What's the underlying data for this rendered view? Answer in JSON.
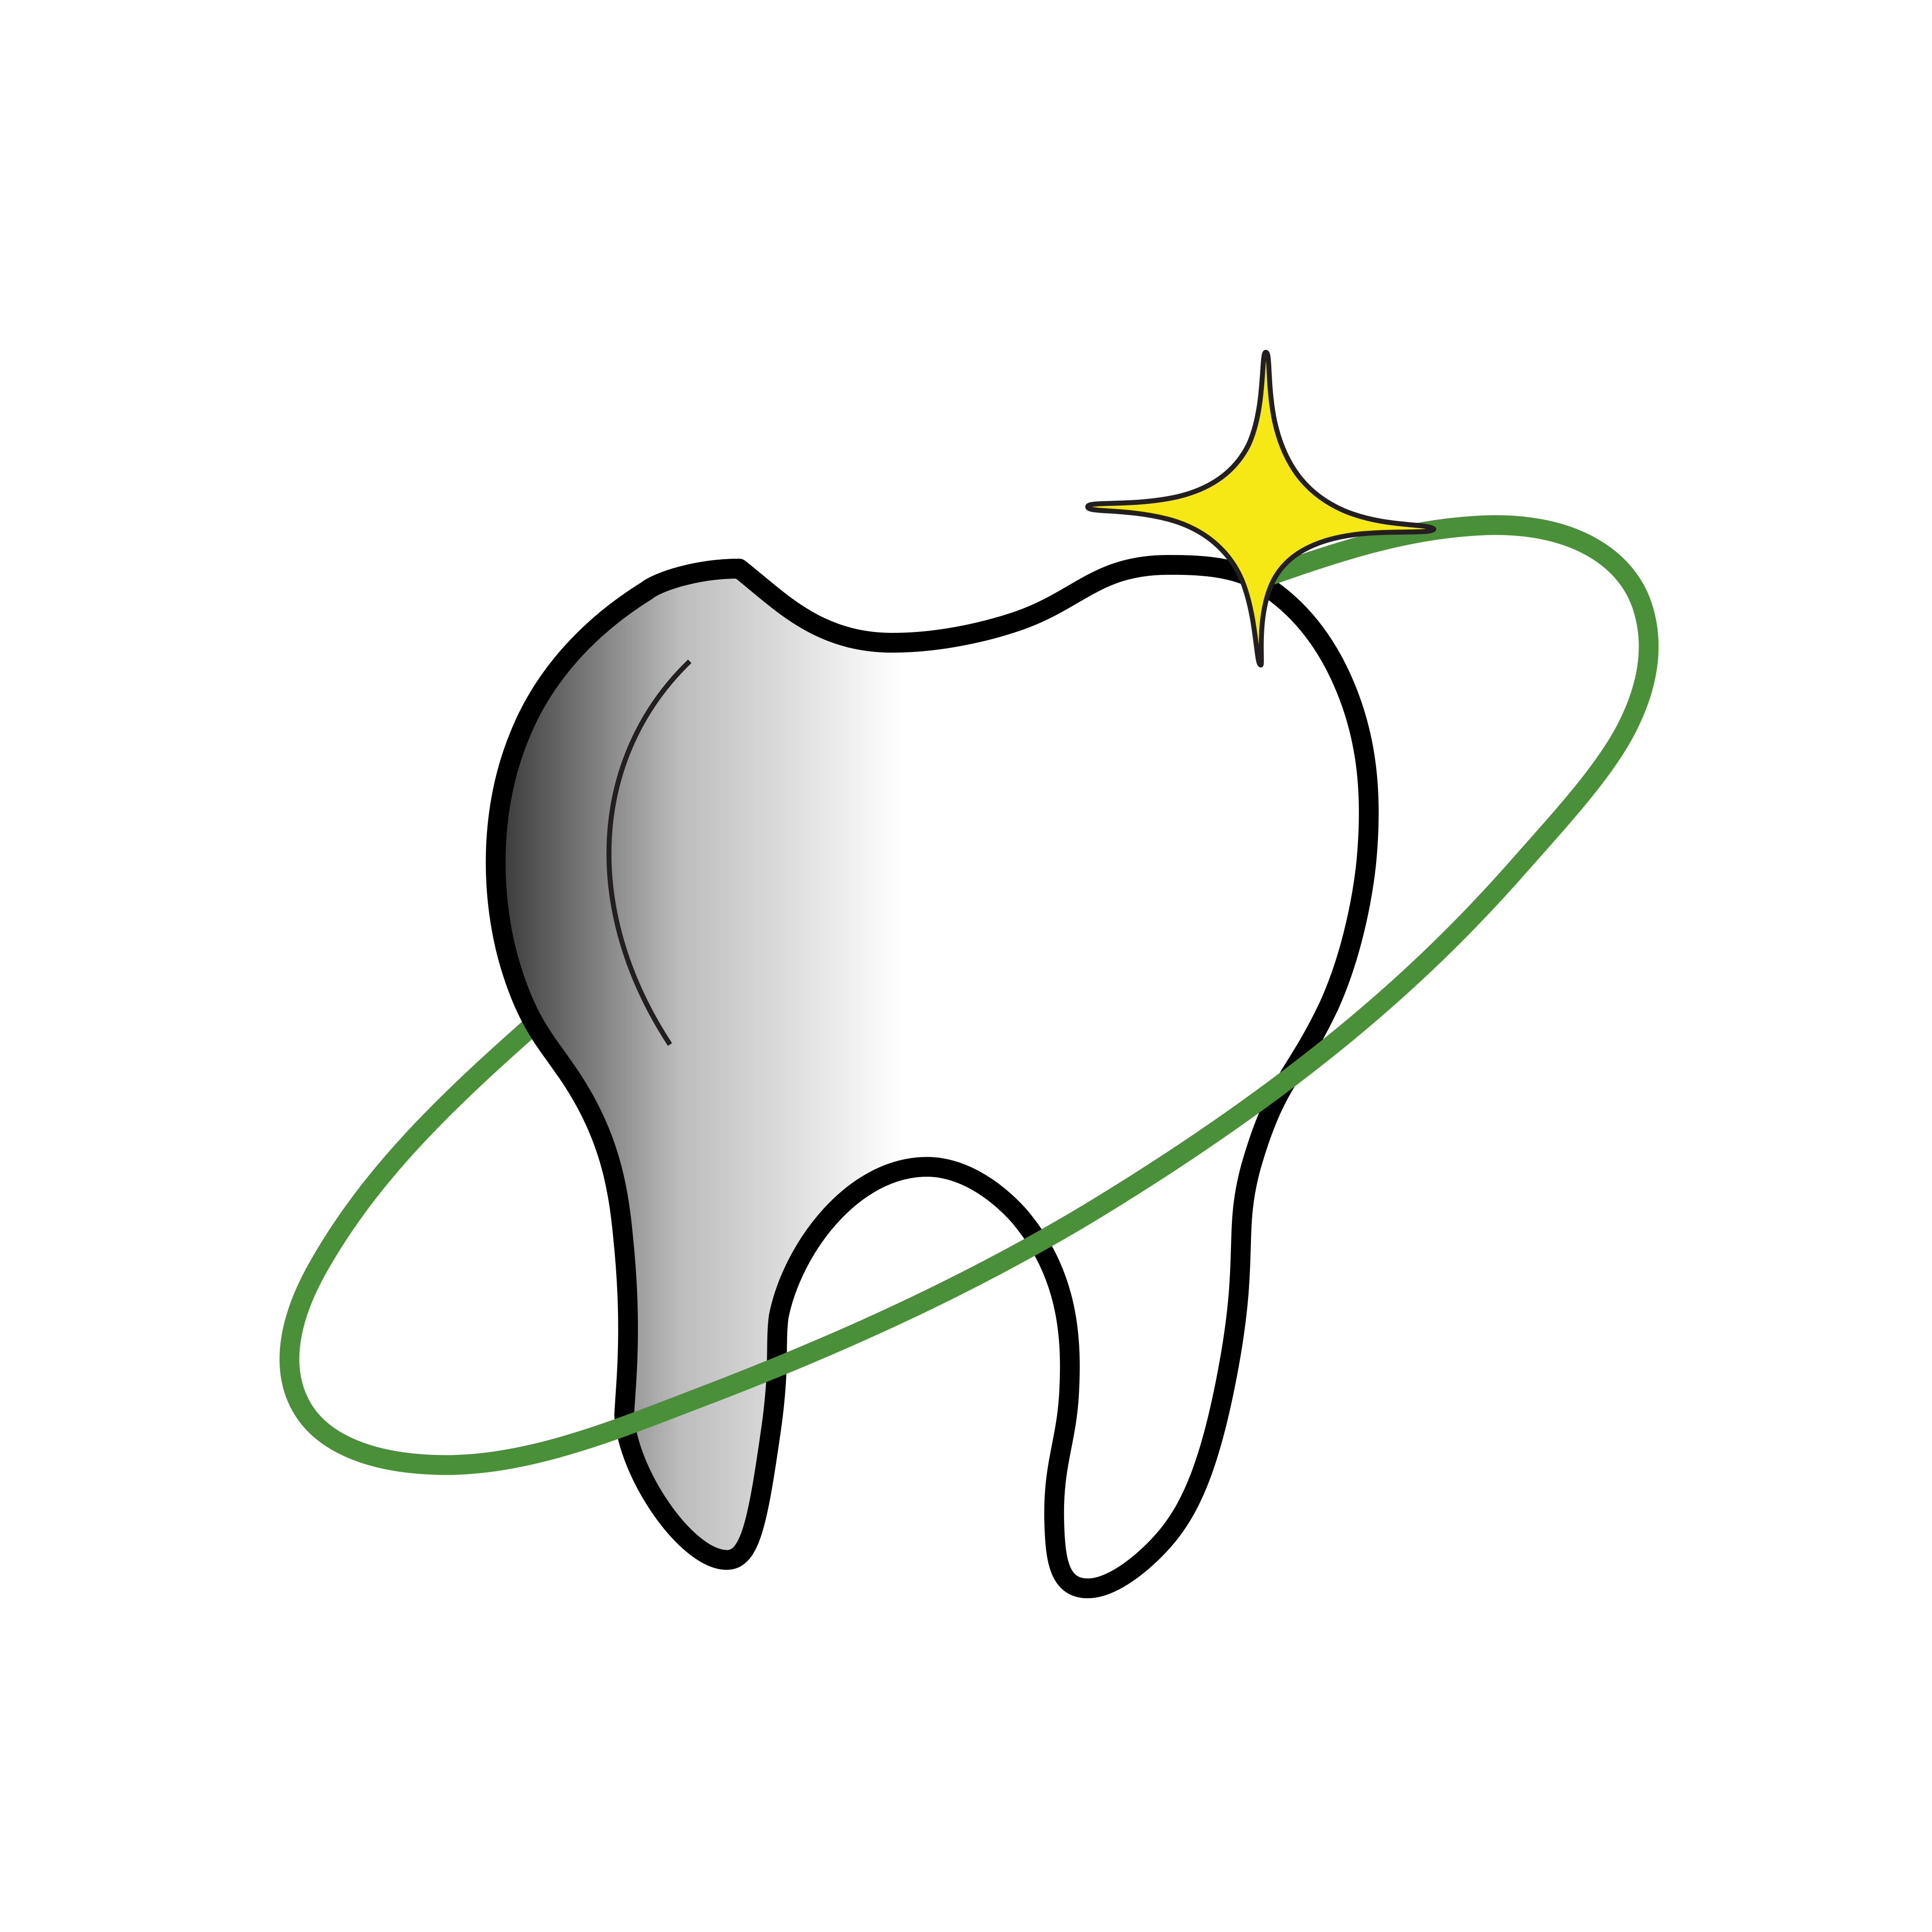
{
  "logo": {
    "icons": {
      "tooth": "tooth-icon",
      "orbit": "orbit-ring-icon",
      "sparkle": "sparkle-star-icon"
    },
    "colors": {
      "background": "#ffffff",
      "outline": "#000000",
      "outline_dark": "#231f20",
      "shade_dark": "#3a3a3a",
      "shade_mid": "#bdbdbd",
      "shade_light": "#ffffff",
      "orbit": "#4a9039",
      "sparkle_fill": "#f5e814",
      "sparkle_stroke": "#231f20"
    }
  }
}
